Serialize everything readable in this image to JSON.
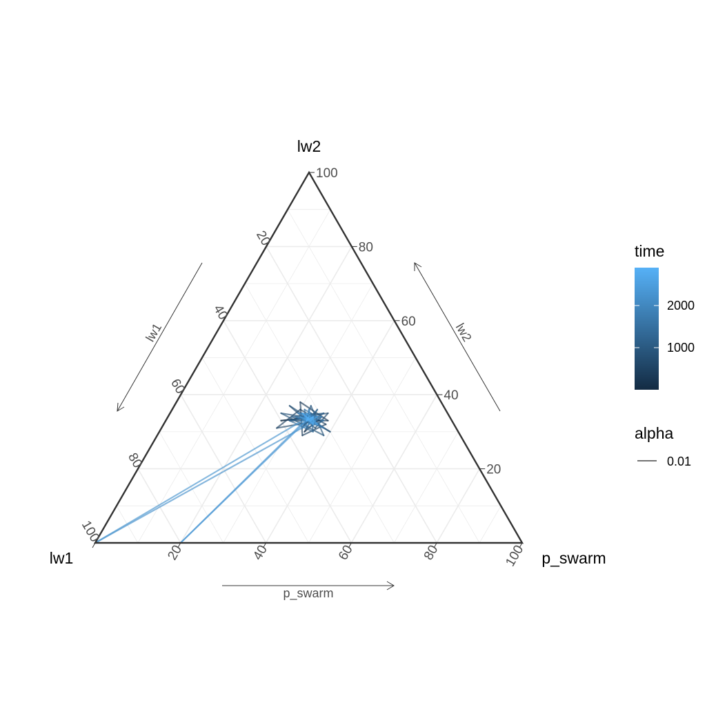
{
  "chart_data": {
    "type": "ternary-line",
    "axes": {
      "left": "lw1",
      "top": "lw2",
      "right": "p_swarm"
    },
    "ticks": [
      "20",
      "40",
      "60",
      "80",
      "100"
    ],
    "grid": true,
    "range": [
      0,
      100
    ],
    "arrows": {
      "lw1": "lw1",
      "lw2": "lw2",
      "p_swarm": "p_swarm"
    },
    "legend": {
      "position": "right",
      "color": {
        "title": "time",
        "min": 1,
        "max": 2900,
        "breaks": [
          {
            "label": "1000",
            "value": 1000
          },
          {
            "label": "2000",
            "value": 2000
          }
        ],
        "low_color": "#132b43",
        "high_color": "#56b1f7"
      },
      "alpha": {
        "title": "alpha",
        "label": "0.01"
      }
    },
    "series": [
      {
        "comment": "trajectory over time; points are [lw1, lw2, p_swarm] in percent, colored by time",
        "points": [
          [
            32,
            34,
            34
          ],
          [
            40,
            33,
            27
          ],
          [
            30,
            34,
            36
          ],
          [
            36,
            30,
            34
          ],
          [
            31,
            35,
            34
          ],
          [
            38,
            33,
            29
          ],
          [
            29,
            33,
            38
          ],
          [
            33,
            38,
            29
          ],
          [
            37,
            29,
            34
          ],
          [
            30,
            32,
            38
          ],
          [
            34,
            36,
            30
          ],
          [
            42,
            31,
            27
          ],
          [
            31,
            33,
            36
          ],
          [
            35,
            34,
            31
          ],
          [
            28,
            35,
            37
          ],
          [
            33,
            31,
            36
          ],
          [
            36,
            37,
            27
          ],
          [
            30,
            30,
            40
          ],
          [
            34,
            34,
            32
          ],
          [
            39,
            35,
            26
          ],
          [
            32,
            29,
            39
          ],
          [
            31,
            37,
            32
          ],
          [
            35,
            32,
            33
          ],
          [
            29,
            35,
            36
          ],
          [
            37,
            34,
            29
          ],
          [
            33,
            33,
            34
          ],
          [
            30,
            36,
            34
          ],
          [
            36,
            31,
            33
          ],
          [
            32,
            35,
            33
          ],
          [
            34,
            30,
            36
          ],
          [
            38,
            33,
            29
          ],
          [
            31,
            34,
            35
          ],
          [
            33,
            36,
            31
          ],
          [
            35,
            31,
            34
          ],
          [
            30,
            33,
            37
          ],
          [
            34,
            35,
            31
          ],
          [
            32,
            32,
            36
          ],
          [
            36,
            34,
            30
          ],
          [
            31,
            31,
            38
          ],
          [
            33,
            34,
            33
          ],
          [
            34,
            33,
            33
          ],
          [
            32,
            34,
            34
          ],
          [
            33,
            33,
            34
          ],
          [
            35,
            35,
            30
          ],
          [
            30,
            34,
            36
          ],
          [
            34,
            32,
            34
          ],
          [
            32,
            36,
            32
          ],
          [
            33,
            32,
            35
          ],
          [
            34,
            34,
            32
          ],
          [
            32,
            33,
            35
          ],
          [
            100,
            0,
            0
          ],
          [
            33,
            34,
            33
          ],
          [
            80,
            0,
            20
          ],
          [
            34,
            33,
            33
          ],
          [
            31,
            34,
            35
          ],
          [
            33,
            33,
            34
          ],
          [
            35,
            34,
            31
          ],
          [
            32,
            32,
            36
          ],
          [
            33,
            35,
            32
          ],
          [
            34,
            33,
            33
          ],
          [
            32,
            34,
            34
          ],
          [
            33,
            32,
            35
          ],
          [
            34,
            35,
            31
          ],
          [
            33,
            33,
            34
          ],
          [
            32,
            34,
            34
          ],
          [
            34,
            33,
            33
          ],
          [
            33,
            34,
            33
          ]
        ]
      }
    ]
  }
}
